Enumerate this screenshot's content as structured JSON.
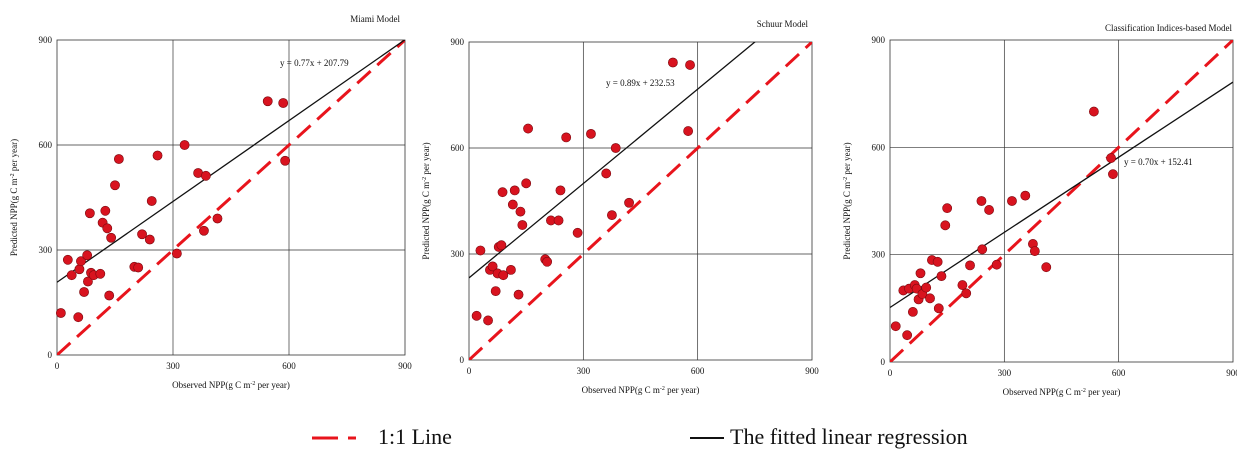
{
  "chart_data": [
    {
      "type": "scatter",
      "title": "Miami  Model",
      "xlabel": "Observed NPP(g C m-2 per year)",
      "ylabel": "Predicted NPP(g C m-2 per year)",
      "xlim": [
        0,
        900
      ],
      "ylim": [
        0,
        900
      ],
      "xticks": [
        "0",
        "300",
        "600",
        "900"
      ],
      "yticks": [
        "0",
        "300",
        "600",
        "900"
      ],
      "grid": true,
      "equation": "y = 0.77x + 207.79",
      "fit": {
        "slope": 0.77,
        "intercept": 207.79
      },
      "colors": {
        "points": "#d8131f",
        "fit": "#111111",
        "one_to_one": "#e8141c"
      },
      "points": [
        [
          10,
          120
        ],
        [
          28,
          272
        ],
        [
          38,
          228
        ],
        [
          55,
          108
        ],
        [
          58,
          245
        ],
        [
          62,
          268
        ],
        [
          70,
          180
        ],
        [
          78,
          285
        ],
        [
          80,
          210
        ],
        [
          85,
          405
        ],
        [
          88,
          235
        ],
        [
          95,
          228
        ],
        [
          112,
          232
        ],
        [
          118,
          378
        ],
        [
          125,
          412
        ],
        [
          130,
          362
        ],
        [
          135,
          170
        ],
        [
          140,
          335
        ],
        [
          150,
          485
        ],
        [
          160,
          560
        ],
        [
          200,
          252
        ],
        [
          210,
          250
        ],
        [
          220,
          345
        ],
        [
          240,
          330
        ],
        [
          245,
          440
        ],
        [
          260,
          570
        ],
        [
          310,
          290
        ],
        [
          330,
          600
        ],
        [
          365,
          520
        ],
        [
          380,
          355
        ],
        [
          385,
          512
        ],
        [
          415,
          390
        ],
        [
          545,
          725
        ],
        [
          585,
          720
        ],
        [
          590,
          555
        ]
      ]
    },
    {
      "type": "scatter",
      "title": "Schuur  Model",
      "xlabel": "Observed NPP(g C m-2 per year)",
      "ylabel": "Predicted NPP(g C m-2 per year)",
      "xlim": [
        0,
        900
      ],
      "ylim": [
        0,
        900
      ],
      "xticks": [
        "0",
        "300",
        "600",
        "900"
      ],
      "yticks": [
        "0",
        "300",
        "600",
        "900"
      ],
      "grid": true,
      "equation": "y = 0.89x + 232.53",
      "fit": {
        "slope": 0.89,
        "intercept": 232.53
      },
      "colors": {
        "points": "#d8131f",
        "fit": "#111111",
        "one_to_one": "#e8141c"
      },
      "points": [
        [
          20,
          125
        ],
        [
          30,
          310
        ],
        [
          50,
          112
        ],
        [
          55,
          255
        ],
        [
          62,
          265
        ],
        [
          70,
          195
        ],
        [
          75,
          245
        ],
        [
          78,
          320
        ],
        [
          85,
          325
        ],
        [
          88,
          475
        ],
        [
          90,
          240
        ],
        [
          110,
          255
        ],
        [
          115,
          440
        ],
        [
          120,
          480
        ],
        [
          130,
          185
        ],
        [
          135,
          420
        ],
        [
          140,
          382
        ],
        [
          150,
          500
        ],
        [
          155,
          655
        ],
        [
          200,
          285
        ],
        [
          205,
          278
        ],
        [
          215,
          395
        ],
        [
          235,
          395
        ],
        [
          240,
          480
        ],
        [
          255,
          630
        ],
        [
          285,
          360
        ],
        [
          320,
          640
        ],
        [
          360,
          528
        ],
        [
          375,
          410
        ],
        [
          385,
          600
        ],
        [
          420,
          445
        ],
        [
          535,
          842
        ],
        [
          575,
          648
        ],
        [
          580,
          835
        ]
      ]
    },
    {
      "type": "scatter",
      "title": "Classification  Indices-based Model",
      "xlabel": "Observed NPP(g C m-2 per year)",
      "ylabel": "Predicted NPP(g C m-2 per year)",
      "xlim": [
        0,
        900
      ],
      "ylim": [
        0,
        900
      ],
      "xticks": [
        "0",
        "300",
        "600",
        "900"
      ],
      "yticks": [
        "0",
        "300",
        "600",
        "900"
      ],
      "grid": true,
      "equation": "y = 0.70x + 152.41",
      "fit": {
        "slope": 0.7,
        "intercept": 152.41
      },
      "colors": {
        "points": "#d8131f",
        "fit": "#111111",
        "one_to_one": "#e8141c"
      },
      "points": [
        [
          15,
          100
        ],
        [
          35,
          200
        ],
        [
          45,
          75
        ],
        [
          50,
          205
        ],
        [
          60,
          140
        ],
        [
          65,
          215
        ],
        [
          70,
          205
        ],
        [
          75,
          175
        ],
        [
          80,
          248
        ],
        [
          85,
          190
        ],
        [
          95,
          208
        ],
        [
          105,
          178
        ],
        [
          110,
          285
        ],
        [
          125,
          280
        ],
        [
          128,
          150
        ],
        [
          135,
          240
        ],
        [
          145,
          382
        ],
        [
          150,
          430
        ],
        [
          190,
          215
        ],
        [
          200,
          192
        ],
        [
          210,
          270
        ],
        [
          240,
          450
        ],
        [
          242,
          315
        ],
        [
          260,
          425
        ],
        [
          280,
          272
        ],
        [
          320,
          450
        ],
        [
          355,
          465
        ],
        [
          375,
          330
        ],
        [
          380,
          310
        ],
        [
          410,
          265
        ],
        [
          535,
          700
        ],
        [
          580,
          570
        ],
        [
          585,
          525
        ]
      ]
    }
  ],
  "legend": [
    {
      "label": "1:1 Line",
      "style": "dashed",
      "color": "#e8141c"
    },
    {
      "label": "The fitted linear regression",
      "style": "solid",
      "color": "#111111"
    }
  ]
}
